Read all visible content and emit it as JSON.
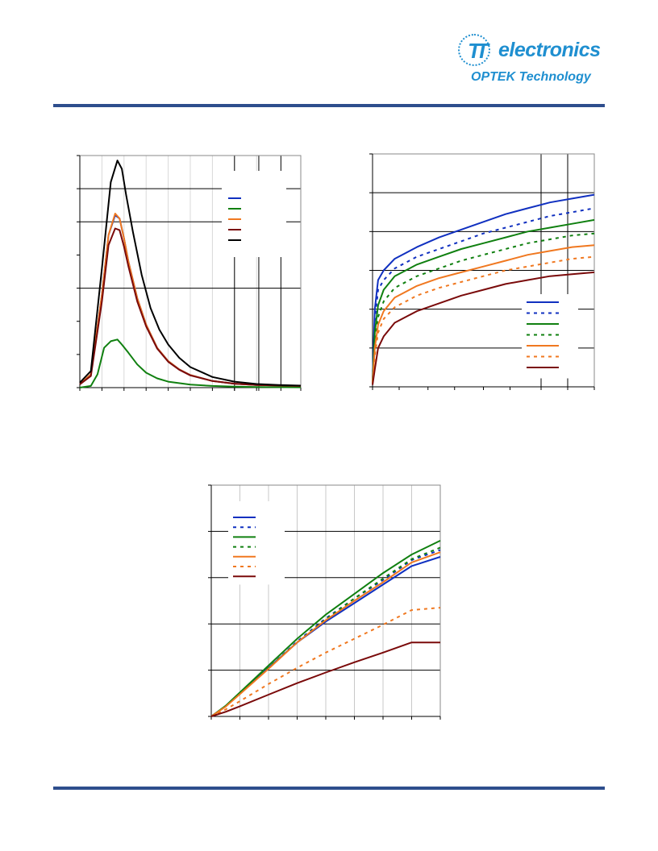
{
  "logo": {
    "mark": "TT",
    "word": "electronics",
    "sub": "OPTEK Technology",
    "color": "#1f8fd0"
  },
  "rule_color": "#2e4e8d",
  "chart_data": [
    {
      "type": "line",
      "title": "",
      "xlabel": "",
      "ylabel": "",
      "xlim": [
        0,
        10
      ],
      "ylim": [
        0,
        7
      ],
      "x_minor_gridlines": [
        1,
        2,
        3,
        4,
        5,
        6,
        7,
        8
      ],
      "x_major_gridlines": [
        7,
        8.1,
        9.1
      ],
      "y_gridlines": [
        3,
        5,
        6
      ],
      "grid": true,
      "legend_position": "top-right",
      "legend_labels_visible": false,
      "series": [
        {
          "color": "#1030c0",
          "dash": "solid",
          "x": [
            0,
            0.5,
            1,
            1.3,
            1.6,
            1.8,
            2.0,
            2.2,
            2.6,
            3.0,
            3.5,
            4.0,
            4.5,
            5.0,
            6.0,
            7.0,
            8.0,
            10.0
          ],
          "y": [
            0.1,
            0.4,
            2.8,
            4.6,
            5.2,
            5.1,
            4.5,
            3.8,
            2.7,
            1.9,
            1.2,
            0.8,
            0.55,
            0.38,
            0.2,
            0.12,
            0.08,
            0.05
          ]
        },
        {
          "color": "#108010",
          "dash": "solid",
          "x": [
            0,
            0.5,
            0.8,
            1.1,
            1.4,
            1.7,
            1.9,
            2.2,
            2.6,
            3.0,
            3.5,
            4.0,
            5.0,
            6.0,
            7.0,
            8.0,
            10.0
          ],
          "y": [
            0.0,
            0.05,
            0.4,
            1.2,
            1.4,
            1.45,
            1.3,
            1.05,
            0.7,
            0.45,
            0.28,
            0.18,
            0.09,
            0.05,
            0.03,
            0.02,
            0.01
          ]
        },
        {
          "color": "#f07820",
          "dash": "solid",
          "x": [
            0,
            0.5,
            1,
            1.3,
            1.6,
            1.8,
            2.0,
            2.2,
            2.6,
            3.0,
            3.5,
            4.0,
            4.5,
            5.0,
            6.0,
            7.0,
            8.0,
            10.0
          ],
          "y": [
            0.1,
            0.4,
            2.8,
            4.6,
            5.25,
            5.1,
            4.5,
            3.8,
            2.7,
            1.9,
            1.2,
            0.8,
            0.55,
            0.38,
            0.2,
            0.12,
            0.08,
            0.05
          ]
        },
        {
          "color": "#7a0a0a",
          "dash": "solid",
          "x": [
            0,
            0.5,
            1,
            1.3,
            1.6,
            1.8,
            2.0,
            2.2,
            2.6,
            3.0,
            3.5,
            4.0,
            4.5,
            5.0,
            6.0,
            7.0,
            8.0,
            10.0
          ],
          "y": [
            0.1,
            0.35,
            2.6,
            4.3,
            4.8,
            4.75,
            4.25,
            3.65,
            2.6,
            1.85,
            1.18,
            0.78,
            0.54,
            0.37,
            0.2,
            0.12,
            0.08,
            0.05
          ]
        },
        {
          "color": "#000000",
          "dash": "solid",
          "x": [
            0,
            0.5,
            1,
            1.4,
            1.7,
            1.9,
            2.1,
            2.4,
            2.8,
            3.2,
            3.6,
            4.0,
            4.5,
            5.0,
            6.0,
            7.0,
            8.0,
            9.0,
            10.0
          ],
          "y": [
            0.15,
            0.5,
            3.6,
            6.2,
            6.85,
            6.6,
            5.8,
            4.7,
            3.4,
            2.4,
            1.75,
            1.3,
            0.9,
            0.62,
            0.32,
            0.18,
            0.11,
            0.08,
            0.06
          ]
        }
      ]
    },
    {
      "type": "line",
      "title": "",
      "xlabel": "",
      "ylabel": "",
      "xlim": [
        0,
        10
      ],
      "ylim": [
        0,
        6
      ],
      "x_major_gridlines": [
        7.6,
        8.8
      ],
      "x_minor_ticks": [
        1.2,
        2.5,
        3.7,
        5.0,
        6.2
      ],
      "y_gridlines": [
        1,
        2,
        3,
        4,
        5
      ],
      "grid": true,
      "legend_position": "bottom-right",
      "legend_labels_visible": false,
      "series": [
        {
          "color": "#1030c0",
          "dash": "solid",
          "x": [
            0,
            0.1,
            0.25,
            0.5,
            1,
            2,
            3,
            4,
            5,
            6,
            7,
            8,
            9,
            10
          ],
          "y": [
            0.2,
            2.0,
            2.75,
            3.0,
            3.3,
            3.6,
            3.85,
            4.05,
            4.25,
            4.45,
            4.6,
            4.75,
            4.85,
            4.95
          ]
        },
        {
          "color": "#1030c0",
          "dash": "dotted",
          "x": [
            0,
            0.1,
            0.25,
            0.5,
            1,
            2,
            3,
            4,
            5,
            6,
            7,
            8,
            9,
            10
          ],
          "y": [
            0.2,
            1.7,
            2.5,
            2.75,
            3.05,
            3.35,
            3.55,
            3.75,
            3.95,
            4.1,
            4.25,
            4.4,
            4.5,
            4.6
          ]
        },
        {
          "color": "#108010",
          "dash": "solid",
          "x": [
            0,
            0.1,
            0.25,
            0.5,
            1,
            2,
            3,
            4,
            5,
            6,
            7,
            8,
            9,
            10
          ],
          "y": [
            0.15,
            1.4,
            2.1,
            2.5,
            2.85,
            3.15,
            3.35,
            3.55,
            3.7,
            3.85,
            4.0,
            4.1,
            4.2,
            4.3
          ]
        },
        {
          "color": "#108010",
          "dash": "dotted",
          "x": [
            0,
            0.1,
            0.25,
            0.5,
            1,
            2,
            3,
            4,
            5,
            6,
            7,
            8,
            9,
            10
          ],
          "y": [
            0.12,
            1.2,
            1.8,
            2.2,
            2.55,
            2.85,
            3.05,
            3.25,
            3.4,
            3.55,
            3.7,
            3.8,
            3.9,
            3.95
          ]
        },
        {
          "color": "#f07820",
          "dash": "solid",
          "x": [
            0,
            0.1,
            0.25,
            0.5,
            1,
            2,
            3,
            4,
            5,
            6,
            7,
            8,
            9,
            10
          ],
          "y": [
            0.1,
            1.0,
            1.6,
            1.95,
            2.3,
            2.6,
            2.8,
            2.95,
            3.1,
            3.25,
            3.4,
            3.5,
            3.6,
            3.65
          ]
        },
        {
          "color": "#f07820",
          "dash": "dotted",
          "x": [
            0,
            0.1,
            0.25,
            0.5,
            1,
            2,
            3,
            4,
            5,
            6,
            7,
            8,
            9,
            10
          ],
          "y": [
            0.08,
            0.8,
            1.4,
            1.75,
            2.05,
            2.35,
            2.55,
            2.7,
            2.85,
            3.0,
            3.1,
            3.2,
            3.3,
            3.35
          ]
        },
        {
          "color": "#7a0a0a",
          "dash": "solid",
          "x": [
            0,
            0.1,
            0.25,
            0.5,
            1,
            2,
            3,
            4,
            5,
            6,
            7,
            8,
            9,
            10
          ],
          "y": [
            0.05,
            0.45,
            1.0,
            1.3,
            1.65,
            1.95,
            2.15,
            2.35,
            2.5,
            2.65,
            2.75,
            2.85,
            2.9,
            2.95
          ]
        }
      ]
    },
    {
      "type": "line",
      "title": "",
      "xlabel": "",
      "ylabel": "",
      "xlim": [
        0,
        8
      ],
      "ylim": [
        0,
        5
      ],
      "x_gridlines": [
        1,
        2,
        3,
        4,
        5,
        6,
        7
      ],
      "y_gridlines": [
        1,
        2,
        3,
        4
      ],
      "grid": true,
      "legend_position": "top-left",
      "legend_labels_visible": false,
      "series": [
        {
          "color": "#1030c0",
          "dash": "solid",
          "x": [
            0,
            0.5,
            1,
            2,
            3,
            4,
            5,
            6,
            7,
            8
          ],
          "y": [
            0,
            0.22,
            0.5,
            1.05,
            1.6,
            2.05,
            2.45,
            2.85,
            3.25,
            3.45
          ]
        },
        {
          "color": "#1030c0",
          "dash": "dotted",
          "x": [
            0,
            0.5,
            1,
            2,
            3,
            4,
            5,
            6,
            7,
            8
          ],
          "y": [
            0,
            0.22,
            0.5,
            1.05,
            1.62,
            2.12,
            2.55,
            2.95,
            3.38,
            3.6
          ]
        },
        {
          "color": "#108010",
          "dash": "solid",
          "x": [
            0,
            0.5,
            1,
            2,
            3,
            4,
            5,
            6,
            7,
            8
          ],
          "y": [
            0,
            0.23,
            0.52,
            1.1,
            1.68,
            2.2,
            2.65,
            3.1,
            3.5,
            3.8
          ]
        },
        {
          "color": "#108010",
          "dash": "dotted",
          "x": [
            0,
            0.5,
            1,
            2,
            3,
            4,
            5,
            6,
            7,
            8
          ],
          "y": [
            0,
            0.22,
            0.5,
            1.05,
            1.6,
            2.1,
            2.55,
            2.98,
            3.4,
            3.65
          ]
        },
        {
          "color": "#f07820",
          "dash": "solid",
          "x": [
            0,
            0.5,
            1,
            2,
            3,
            4,
            5,
            6,
            7,
            8
          ],
          "y": [
            0,
            0.21,
            0.48,
            1.03,
            1.6,
            2.08,
            2.5,
            2.9,
            3.33,
            3.55
          ]
        },
        {
          "color": "#f07820",
          "dash": "dotted",
          "x": [
            0,
            0.5,
            1,
            2,
            3,
            4,
            5,
            6,
            7,
            8
          ],
          "y": [
            0,
            0.15,
            0.33,
            0.7,
            1.05,
            1.38,
            1.68,
            1.98,
            2.3,
            2.35
          ]
        },
        {
          "color": "#7a0a0a",
          "dash": "solid",
          "x": [
            0,
            0.5,
            1,
            2,
            3,
            4,
            5,
            6,
            7,
            8
          ],
          "y": [
            0,
            0.1,
            0.22,
            0.47,
            0.72,
            0.95,
            1.17,
            1.38,
            1.6,
            1.6
          ]
        }
      ]
    }
  ]
}
